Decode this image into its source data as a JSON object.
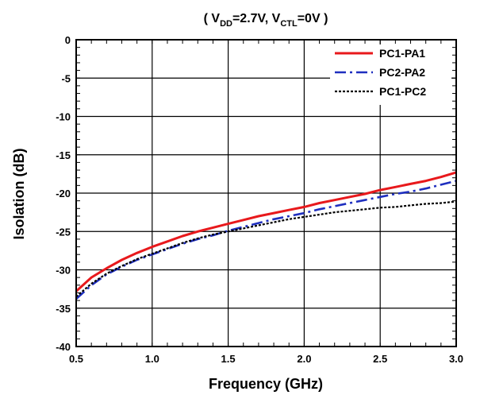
{
  "chart_data": {
    "type": "line",
    "title_parts": [
      "( V",
      "DD",
      "=2.7V, V",
      "CTL",
      "=0V )"
    ],
    "xlabel": "Frequency (GHz)",
    "ylabel": "Isolation (dB)",
    "xlim": [
      0.5,
      3.0
    ],
    "ylim": [
      -40,
      0
    ],
    "x_ticks": [
      0.5,
      1.0,
      1.5,
      2.0,
      2.5,
      3.0
    ],
    "x_tick_labels": [
      "0.5",
      "1.0",
      "1.5",
      "2.0",
      "2.5",
      "3.0"
    ],
    "y_ticks": [
      0,
      -5,
      -10,
      -15,
      -20,
      -25,
      -30,
      -35,
      -40
    ],
    "y_tick_labels": [
      "0",
      "-5",
      "-10",
      "-15",
      "-20",
      "-25",
      "-30",
      "-35",
      "-40"
    ],
    "grid": true,
    "legend_position": "top-right",
    "series": [
      {
        "name": "PC1-PA1",
        "color": "#e8191c",
        "style": "solid",
        "x": [
          0.5,
          0.6,
          0.7,
          0.8,
          0.9,
          1.0,
          1.1,
          1.2,
          1.3,
          1.4,
          1.5,
          1.6,
          1.7,
          1.8,
          1.9,
          2.0,
          2.1,
          2.2,
          2.3,
          2.4,
          2.5,
          2.6,
          2.7,
          2.8,
          2.9,
          3.0
        ],
        "values": [
          -32.8,
          -31.0,
          -29.8,
          -28.7,
          -27.8,
          -27.0,
          -26.3,
          -25.6,
          -25.0,
          -24.5,
          -24.0,
          -23.5,
          -23.0,
          -22.6,
          -22.2,
          -21.8,
          -21.3,
          -20.9,
          -20.5,
          -20.1,
          -19.6,
          -19.2,
          -18.8,
          -18.4,
          -17.9,
          -17.3
        ]
      },
      {
        "name": "PC2-PA2",
        "color": "#1f2fbf",
        "style": "dashdot",
        "x": [
          0.5,
          0.6,
          0.7,
          0.8,
          0.9,
          1.0,
          1.1,
          1.2,
          1.3,
          1.4,
          1.5,
          1.6,
          1.7,
          1.8,
          1.9,
          2.0,
          2.1,
          2.2,
          2.3,
          2.4,
          2.5,
          2.6,
          2.7,
          2.8,
          2.9,
          3.0
        ],
        "values": [
          -33.8,
          -32.0,
          -30.6,
          -29.6,
          -28.7,
          -28.0,
          -27.3,
          -26.6,
          -26.0,
          -25.5,
          -24.9,
          -24.4,
          -23.9,
          -23.4,
          -23.0,
          -22.6,
          -22.1,
          -21.7,
          -21.3,
          -20.9,
          -20.5,
          -20.1,
          -19.8,
          -19.4,
          -18.9,
          -18.4
        ]
      },
      {
        "name": "PC1-PC2",
        "color": "#000000",
        "style": "dotted",
        "x": [
          0.5,
          0.6,
          0.7,
          0.8,
          0.9,
          1.0,
          1.1,
          1.2,
          1.3,
          1.4,
          1.5,
          1.6,
          1.7,
          1.8,
          1.9,
          2.0,
          2.1,
          2.2,
          2.3,
          2.4,
          2.5,
          2.6,
          2.7,
          2.8,
          2.9,
          3.0
        ],
        "values": [
          -33.5,
          -31.8,
          -30.5,
          -29.5,
          -28.6,
          -27.9,
          -27.2,
          -26.5,
          -25.9,
          -25.4,
          -25.0,
          -24.6,
          -24.2,
          -23.8,
          -23.4,
          -23.1,
          -22.8,
          -22.5,
          -22.3,
          -22.1,
          -21.9,
          -21.8,
          -21.6,
          -21.4,
          -21.3,
          -21.1
        ]
      }
    ]
  }
}
